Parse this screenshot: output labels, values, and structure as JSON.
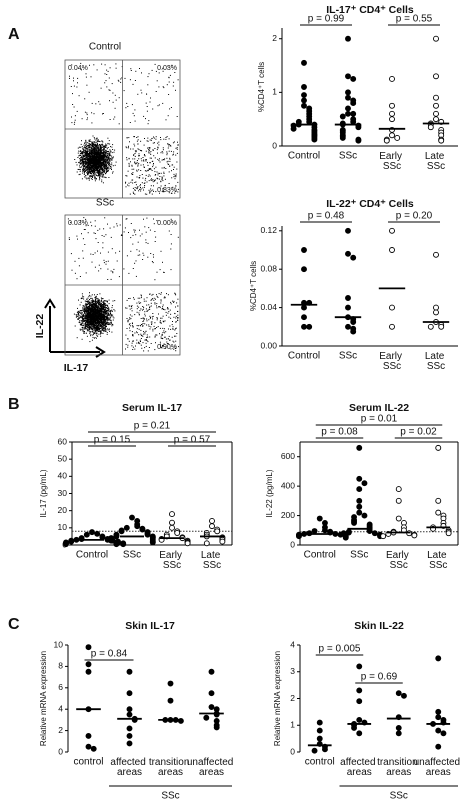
{
  "chart_data": [
    {
      "type": "flow",
      "panel": "A",
      "title": "Control",
      "quadrant_labels": [
        "0.04%",
        "0.03%",
        "0.83%"
      ]
    },
    {
      "type": "flow",
      "title": "SSc",
      "quadrant_labels": [
        "0.03%",
        "0.00%",
        "0.90%"
      ],
      "xlabel": "IL-17",
      "ylabel": "IL-22"
    },
    {
      "type": "dotplot",
      "title": "IL-17⁺ CD4⁺ Cells",
      "ylabel": "%CD4⁺T cells",
      "frame": "axes",
      "categories": [
        "Control",
        "SSc",
        "Early SSc",
        "Late SSc"
      ],
      "open": [
        false,
        false,
        true,
        true
      ],
      "ylim": [
        0,
        2.2
      ],
      "yticks": [
        0,
        1,
        2
      ],
      "values": [
        [
          1.55,
          1.1,
          0.95,
          0.85,
          0.75,
          0.7,
          0.65,
          0.6,
          0.55,
          0.5,
          0.45,
          0.45,
          0.4,
          0.4,
          0.38,
          0.35,
          0.32,
          0.3,
          0.28,
          0.25,
          0.22,
          0.2,
          0.18,
          0.15,
          0.12
        ],
        [
          2.0,
          1.3,
          1.25,
          1.0,
          0.9,
          0.85,
          0.8,
          0.7,
          0.6,
          0.6,
          0.55,
          0.5,
          0.45,
          0.42,
          0.4,
          0.38,
          0.35,
          0.3,
          0.28,
          0.25,
          0.2,
          0.18,
          0.15,
          0.12,
          0.1
        ],
        [
          1.25,
          0.75,
          0.6,
          0.5,
          0.3,
          0.2,
          0.15,
          0.12,
          0.1
        ],
        [
          2.0,
          1.3,
          0.9,
          0.75,
          0.6,
          0.5,
          0.45,
          0.42,
          0.4,
          0.35,
          0.3,
          0.25,
          0.2,
          0.12,
          0.1
        ]
      ],
      "medians": [
        0.4,
        0.4,
        0.32,
        0.42
      ],
      "comparisons": [
        {
          "from": 0,
          "to": 1,
          "label": "p = 0.99"
        },
        {
          "from": 2,
          "to": 3,
          "label": "p = 0.55"
        }
      ]
    },
    {
      "type": "dotplot",
      "title": "IL-22⁺ CD4⁺ Cells",
      "ylabel": "%CD4⁺T cells",
      "frame": "axes",
      "categories": [
        "Control",
        "SSc",
        "Early SSc",
        "Late SSc"
      ],
      "open": [
        false,
        false,
        true,
        true
      ],
      "ylim": [
        0,
        0.125
      ],
      "yticks": [
        {
          "value": 0,
          "label": "0.00"
        },
        {
          "value": 0.04,
          "label": "0.04"
        },
        {
          "value": 0.08,
          "label": "0.08"
        },
        {
          "value": 0.12,
          "label": "0.12"
        }
      ],
      "values": [
        [
          0.1,
          0.08,
          0.045,
          0.045,
          0.04,
          0.03,
          0.02,
          0.02
        ],
        [
          0.12,
          0.096,
          0.092,
          0.05,
          0.04,
          0.03,
          0.028,
          0.025,
          0.02,
          0.018,
          0.015
        ],
        [
          0.12,
          0.1,
          0.04,
          0.02
        ],
        [
          0.095,
          0.04,
          0.035,
          0.025,
          0.022,
          0.02,
          0.02
        ]
      ],
      "medians": [
        0.043,
        0.03,
        0.06,
        0.025
      ],
      "comparisons": [
        {
          "from": 0,
          "to": 1,
          "label": "p = 0.48"
        },
        {
          "from": 2,
          "to": 3,
          "label": "p = 0.20"
        }
      ]
    },
    {
      "type": "dotplot",
      "panel": "B",
      "title": "Serum IL-17",
      "ylabel": "IL-17 (pg/mL)",
      "frame": "box",
      "categories": [
        "Control",
        "SSc",
        "Early SSc",
        "Late SSc"
      ],
      "open": [
        false,
        false,
        true,
        true
      ],
      "ylim": [
        0,
        60
      ],
      "yticks": [
        0,
        10,
        20,
        30,
        40,
        50,
        60
      ],
      "refline": 8,
      "values": [
        [
          7.5,
          6.5,
          6,
          5,
          4.5,
          4,
          3.5,
          3.5,
          3,
          3,
          2.5,
          2.5,
          2,
          2,
          1.5,
          1.5,
          1,
          1,
          0.5,
          0.5
        ],
        [
          16,
          14,
          12,
          11,
          10,
          9.5,
          9,
          8.5,
          8,
          7.5,
          7,
          6.5,
          6,
          6,
          5.5,
          5,
          5,
          4.5,
          4,
          4,
          3.5,
          3,
          3,
          2.5,
          2,
          1.5,
          1,
          0.5
        ],
        [
          18,
          13,
          10,
          8,
          7,
          6,
          5,
          4.5,
          4,
          3.5,
          3,
          2.5,
          2,
          1.5,
          1
        ],
        [
          14,
          11,
          9,
          8,
          7,
          6,
          5,
          4.5,
          4,
          3,
          2,
          1
        ]
      ],
      "medians": [
        3,
        5,
        4,
        5
      ],
      "comparisons": [
        {
          "from": 0,
          "to": 1,
          "label": "p = 0.15"
        },
        {
          "from": 2,
          "to": 3,
          "label": "p = 0.57"
        },
        {
          "from": 0,
          "to": 3,
          "label": "p = 0.21"
        }
      ]
    },
    {
      "type": "dotplot",
      "title": "Serum IL-22",
      "ylabel": "IL-22 (pg/mL)",
      "frame": "box",
      "categories": [
        "Control",
        "SSc",
        "Early SSc",
        "Late SSc"
      ],
      "open": [
        false,
        false,
        true,
        true
      ],
      "ylim": [
        0,
        700
      ],
      "yticks": [
        0,
        200,
        400,
        600
      ],
      "refline": 90,
      "values": [
        [
          180,
          150,
          120,
          100,
          95,
          90,
          85,
          80,
          75,
          75,
          70,
          70,
          65,
          60,
          60,
          55,
          50
        ],
        [
          660,
          450,
          420,
          380,
          300,
          260,
          220,
          200,
          190,
          170,
          160,
          150,
          140,
          130,
          120,
          110,
          100,
          95,
          90,
          85,
          80,
          80,
          75,
          70,
          65,
          60
        ],
        [
          380,
          300,
          180,
          150,
          120,
          100,
          90,
          85,
          80,
          75,
          70,
          65,
          60
        ],
        [
          660,
          300,
          220,
          200,
          180,
          150,
          130,
          120,
          110,
          100,
          90,
          80
        ]
      ],
      "medians": [
        75,
        110,
        85,
        120
      ],
      "comparisons": [
        {
          "from": 0,
          "to": 1,
          "label": "p = 0.08"
        },
        {
          "from": 2,
          "to": 3,
          "label": "p = 0.02"
        },
        {
          "from": 0,
          "to": 3,
          "label": "p = 0.01"
        }
      ]
    },
    {
      "type": "dotplot",
      "panel": "C",
      "title": "Skin IL-17",
      "ylabel": "Relative mRNA expression",
      "frame": "left",
      "categories": [
        "control",
        "affected areas",
        "transition areas",
        "unaffected areas"
      ],
      "open": [
        false,
        false,
        false,
        false
      ],
      "ylim": [
        0,
        10
      ],
      "yticks": [
        0,
        2,
        4,
        6,
        8,
        10
      ],
      "group_label": {
        "text": "SSc",
        "from": 1,
        "to": 3
      },
      "values": [
        [
          9.8,
          8.2,
          7.5,
          4,
          1.5,
          0.5,
          0.3
        ],
        [
          7.5,
          5.5,
          4,
          3.5,
          3.1,
          3,
          2.2,
          1.5,
          0.8
        ],
        [
          6.4,
          4.8,
          3,
          3,
          3,
          2.9
        ],
        [
          7.5,
          5.5,
          4.2,
          4,
          3.6,
          3.5,
          3.2,
          2.9,
          2.5,
          2.3
        ]
      ],
      "medians": [
        4,
        3.1,
        3,
        3.6
      ],
      "comparisons": [
        {
          "from": 0,
          "to": 1,
          "label": "p = 0.84"
        }
      ]
    },
    {
      "type": "dotplot",
      "title": "Skin IL-22",
      "ylabel": "Relative mRNA expression",
      "frame": "left",
      "categories": [
        "control",
        "affected areas",
        "transition areas",
        "unaffected areas"
      ],
      "open": [
        false,
        false,
        false,
        false
      ],
      "ylim": [
        0,
        4
      ],
      "yticks": [
        0,
        1,
        2,
        3,
        4
      ],
      "group_label": {
        "text": "SSc",
        "from": 1,
        "to": 3
      },
      "values": [
        [
          1.1,
          0.8,
          0.5,
          0.3,
          0.2,
          0.1,
          0.05
        ],
        [
          3.2,
          2.3,
          1.9,
          1.2,
          1.1,
          1.05,
          1,
          0.9,
          0.7
        ],
        [
          2.2,
          2.1,
          1.3,
          0.9,
          0.7
        ],
        [
          3.5,
          1.5,
          1.3,
          1.2,
          1.1,
          1.05,
          0.8,
          0.7,
          0.2
        ]
      ],
      "medians": [
        0.25,
        1.05,
        1.25,
        1.05
      ],
      "comparisons": [
        {
          "from": 1,
          "to": 2,
          "label": "p = 0.69"
        },
        {
          "from": 0,
          "to": 1,
          "label": "p = 0.005"
        }
      ]
    }
  ]
}
